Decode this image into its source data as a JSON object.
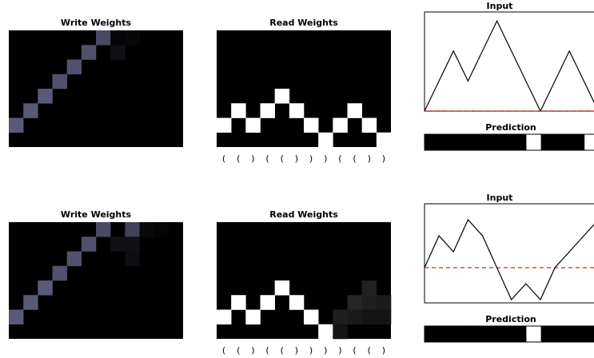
{
  "chart_data": [
    {
      "type": "heatmap",
      "title": "Write Weights",
      "rows": 8,
      "cols": 12,
      "cells": [
        {
          "row": 6,
          "col": 0,
          "v": 0.55
        },
        {
          "row": 5,
          "col": 1,
          "v": 0.55
        },
        {
          "row": 4,
          "col": 2,
          "v": 0.55
        },
        {
          "row": 3,
          "col": 3,
          "v": 0.5
        },
        {
          "row": 2,
          "col": 4,
          "v": 0.5
        },
        {
          "row": 1,
          "col": 5,
          "v": 0.5
        },
        {
          "row": 0,
          "col": 6,
          "v": 0.45
        },
        {
          "row": 1,
          "col": 7,
          "v": 0.1
        },
        {
          "row": 0,
          "col": 8,
          "v": 0.05
        },
        {
          "row": 0,
          "col": 7,
          "v": 0.03
        }
      ]
    },
    {
      "type": "heatmap",
      "title": "Read Weights",
      "rows": 8,
      "cols": 12,
      "cells": [
        {
          "row": 6,
          "col": 0,
          "v": 1
        },
        {
          "row": 5,
          "col": 1,
          "v": 1
        },
        {
          "row": 6,
          "col": 2,
          "v": 1
        },
        {
          "row": 5,
          "col": 3,
          "v": 1
        },
        {
          "row": 4,
          "col": 4,
          "v": 1
        },
        {
          "row": 5,
          "col": 5,
          "v": 1
        },
        {
          "row": 6,
          "col": 6,
          "v": 1
        },
        {
          "row": 7,
          "col": 7,
          "v": 1
        },
        {
          "row": 6,
          "col": 8,
          "v": 1
        },
        {
          "row": 5,
          "col": 9,
          "v": 1
        },
        {
          "row": 6,
          "col": 10,
          "v": 1
        },
        {
          "row": 7,
          "col": 11,
          "v": 1
        }
      ],
      "x_tick_labels": [
        "(",
        "(",
        ")",
        "(",
        "(",
        ")",
        ")",
        ")",
        "(",
        "(",
        ")",
        ")"
      ]
    },
    {
      "type": "line",
      "title": "Input",
      "x": [
        0,
        1,
        2,
        3,
        4,
        5,
        6,
        7,
        8,
        9,
        10,
        11,
        12
      ],
      "y": [
        0,
        1,
        2,
        1,
        2,
        3,
        2,
        1,
        0,
        1,
        2,
        1,
        0
      ],
      "threshold": 0,
      "ylim": [
        0,
        3.3
      ],
      "xlim": [
        0,
        11.7
      ]
    },
    {
      "type": "bar",
      "title": "Prediction",
      "values": [
        0,
        0,
        0,
        0,
        0,
        0,
        0,
        1,
        0,
        0,
        0,
        1,
        0
      ]
    },
    {
      "type": "heatmap",
      "title": "Write Weights",
      "rows": 8,
      "cols": 12,
      "cells": [
        {
          "row": 6,
          "col": 0,
          "v": 0.55
        },
        {
          "row": 5,
          "col": 1,
          "v": 0.55
        },
        {
          "row": 4,
          "col": 2,
          "v": 0.55
        },
        {
          "row": 3,
          "col": 3,
          "v": 0.5
        },
        {
          "row": 2,
          "col": 4,
          "v": 0.5
        },
        {
          "row": 1,
          "col": 5,
          "v": 0.5
        },
        {
          "row": 0,
          "col": 6,
          "v": 0.45
        },
        {
          "row": 1,
          "col": 7,
          "v": 0.1
        },
        {
          "row": 0,
          "col": 8,
          "v": 0.4
        },
        {
          "row": 1,
          "col": 8,
          "v": 0.1
        },
        {
          "row": 2,
          "col": 8,
          "v": 0.08
        },
        {
          "row": 0,
          "col": 9,
          "v": 0.06
        },
        {
          "row": 0,
          "col": 10,
          "v": 0.03
        }
      ]
    },
    {
      "type": "heatmap",
      "title": "Read Weights",
      "rows": 8,
      "cols": 12,
      "cells": [
        {
          "row": 6,
          "col": 0,
          "v": 1
        },
        {
          "row": 5,
          "col": 1,
          "v": 1
        },
        {
          "row": 6,
          "col": 2,
          "v": 1
        },
        {
          "row": 5,
          "col": 3,
          "v": 1
        },
        {
          "row": 4,
          "col": 4,
          "v": 1
        },
        {
          "row": 5,
          "col": 5,
          "v": 1
        },
        {
          "row": 6,
          "col": 6,
          "v": 1
        },
        {
          "row": 7,
          "col": 7,
          "v": 1
        },
        {
          "row": 6,
          "col": 8,
          "v": 0.12
        },
        {
          "row": 7,
          "col": 8,
          "v": 0.08
        },
        {
          "row": 5,
          "col": 9,
          "v": 0.15
        },
        {
          "row": 6,
          "col": 9,
          "v": 0.1
        },
        {
          "row": 4,
          "col": 10,
          "v": 0.13
        },
        {
          "row": 5,
          "col": 10,
          "v": 0.12
        },
        {
          "row": 6,
          "col": 10,
          "v": 0.08
        },
        {
          "row": 5,
          "col": 11,
          "v": 0.1
        },
        {
          "row": 6,
          "col": 11,
          "v": 0.08
        }
      ],
      "x_tick_labels": [
        "(",
        "(",
        ")",
        "(",
        "(",
        ")",
        ")",
        ")",
        ")",
        "(",
        "(",
        ")"
      ]
    },
    {
      "type": "line",
      "title": "Input",
      "x": [
        0,
        1,
        2,
        3,
        4,
        5,
        6,
        7,
        8,
        9,
        10,
        11,
        12
      ],
      "y": [
        0,
        1,
        0.5,
        1.5,
        1,
        0,
        -1,
        -0.5,
        -1,
        0,
        0.5,
        1,
        1.5
      ],
      "threshold": 0,
      "ylim": [
        -1.1,
        2
      ],
      "xlim": [
        0,
        11.7
      ]
    },
    {
      "type": "bar",
      "title": "Prediction",
      "values": [
        0,
        0,
        0,
        0,
        0,
        0,
        0,
        1,
        0,
        0,
        0,
        0,
        0
      ]
    }
  ],
  "colors": {
    "background": "#ffffff",
    "cell_base": "#000000",
    "write_tint": "#5a5a7a",
    "read_tint": "#ffffff",
    "threshold": "#e02020",
    "line": "#000000"
  }
}
